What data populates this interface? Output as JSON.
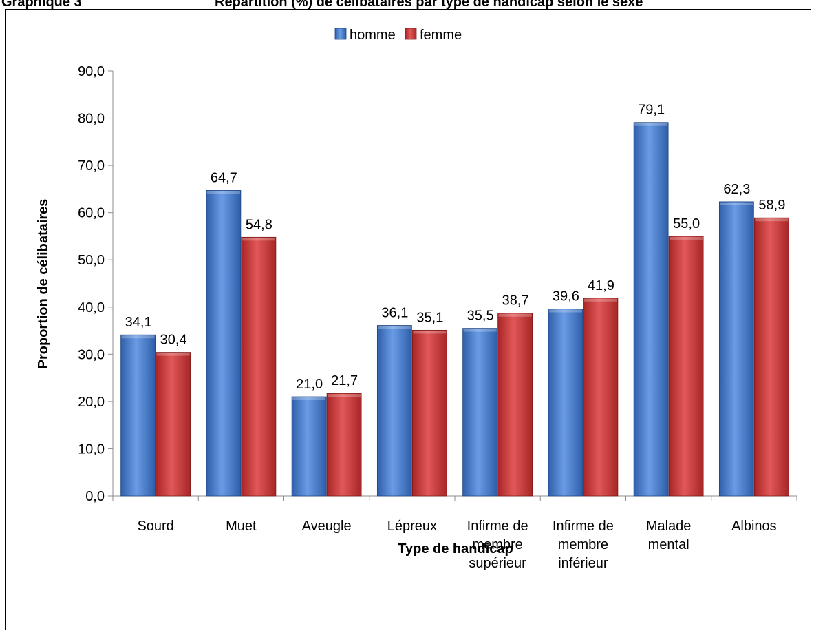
{
  "caption": {
    "left": "Graphique 3",
    "right": "Répartition (%) de célibataires par type de handicap selon le sexe"
  },
  "chart_data": {
    "type": "bar",
    "title": "",
    "xlabel": "Type de handicap",
    "ylabel": "Proportion de célibataires",
    "ylim": [
      0,
      90
    ],
    "yticks": [
      "0,0",
      "10,0",
      "20,0",
      "30,0",
      "40,0",
      "50,0",
      "60,0",
      "70,0",
      "80,0",
      "90,0"
    ],
    "grid": false,
    "legend_position": "top-center",
    "categories": [
      [
        "Sourd"
      ],
      [
        "Muet"
      ],
      [
        "Aveugle"
      ],
      [
        "Lépreux"
      ],
      [
        "Infirme de",
        "membre",
        "supérieur"
      ],
      [
        "Infirme de",
        "membre",
        "inférieur"
      ],
      [
        "Malade",
        "mental"
      ],
      [
        "Albinos"
      ]
    ],
    "series": [
      {
        "name": "homme",
        "color": "#4a7fcf",
        "values": [
          34.1,
          64.7,
          21.0,
          36.1,
          35.5,
          39.6,
          79.1,
          62.3
        ],
        "labels": [
          "34,1",
          "64,7",
          "21,0",
          "36,1",
          "35,5",
          "39,6",
          "79,1",
          "62,3"
        ]
      },
      {
        "name": "femme",
        "color": "#d13c3c",
        "values": [
          30.4,
          54.8,
          21.7,
          35.1,
          38.7,
          41.9,
          55.0,
          58.9
        ],
        "labels": [
          "30,4",
          "54,8",
          "21,7",
          "35,1",
          "38,7",
          "41,9",
          "55,0",
          "58,9"
        ]
      }
    ]
  }
}
